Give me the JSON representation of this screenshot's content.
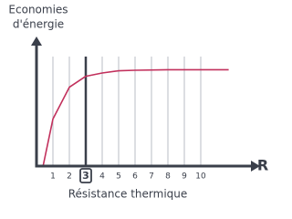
{
  "chart_data": {
    "type": "line",
    "ylabel": [
      "Economies",
      "d'énergie"
    ],
    "xlabel": "Résistance thermique",
    "axis_symbol": "R",
    "x": [
      0.4,
      1,
      2,
      3,
      4,
      5,
      6,
      8,
      11.7
    ],
    "series": [
      {
        "color": "#c2305c",
        "values": [
          0,
          0.43,
          0.72,
          0.82,
          0.85,
          0.87,
          0.875,
          0.88,
          0.88
        ]
      }
    ],
    "xlim": [
      0,
      13.5
    ],
    "ylim": [
      0,
      1
    ],
    "xticks": [
      1,
      2,
      3,
      4,
      5,
      6,
      7,
      8,
      9,
      10
    ],
    "highlight_index": 2,
    "grid": true
  }
}
